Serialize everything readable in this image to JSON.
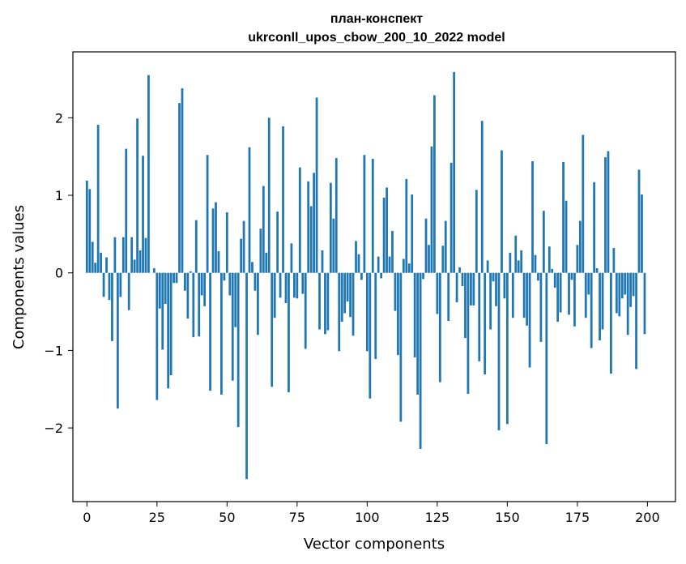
{
  "colors": {
    "bar": "#1f77b4",
    "axes": "#000000",
    "background": "#ffffff"
  },
  "chart_data": {
    "type": "bar",
    "title": "план-конспект",
    "subtitle": "ukrconll_upos_cbow_200_10_2022 model",
    "xlabel": "Vector components",
    "ylabel": "Components values",
    "xlim": [
      -5,
      210
    ],
    "ylim": [
      -2.95,
      2.85
    ],
    "xticks": [
      0,
      25,
      50,
      75,
      100,
      125,
      150,
      175,
      200
    ],
    "xtick_labels": [
      "0",
      "25",
      "50",
      "75",
      "100",
      "125",
      "150",
      "175",
      "200"
    ],
    "yticks": [
      -2,
      -1,
      0,
      1,
      2
    ],
    "ytick_labels": [
      "−2",
      "−1",
      "0",
      "1",
      "2"
    ],
    "grid": false,
    "legend": "none",
    "x": [
      0,
      1,
      2,
      3,
      4,
      5,
      6,
      7,
      8,
      9,
      10,
      11,
      12,
      13,
      14,
      15,
      16,
      17,
      18,
      19,
      20,
      21,
      22,
      23,
      24,
      25,
      26,
      27,
      28,
      29,
      30,
      31,
      32,
      33,
      34,
      35,
      36,
      37,
      38,
      39,
      40,
      41,
      42,
      43,
      44,
      45,
      46,
      47,
      48,
      49,
      50,
      51,
      52,
      53,
      54,
      55,
      56,
      57,
      58,
      59,
      60,
      61,
      62,
      63,
      64,
      65,
      66,
      67,
      68,
      69,
      70,
      71,
      72,
      73,
      74,
      75,
      76,
      77,
      78,
      79,
      80,
      81,
      82,
      83,
      84,
      85,
      86,
      87,
      88,
      89,
      90,
      91,
      92,
      93,
      94,
      95,
      96,
      97,
      98,
      99,
      100,
      101,
      102,
      103,
      104,
      105,
      106,
      107,
      108,
      109,
      110,
      111,
      112,
      113,
      114,
      115,
      116,
      117,
      118,
      119,
      120,
      121,
      122,
      123,
      124,
      125,
      126,
      127,
      128,
      129,
      130,
      131,
      132,
      133,
      134,
      135,
      136,
      137,
      138,
      139,
      140,
      141,
      142,
      143,
      144,
      145,
      146,
      147,
      148,
      149,
      150,
      151,
      152,
      153,
      154,
      155,
      156,
      157,
      158,
      159,
      160,
      161,
      162,
      163,
      164,
      165,
      166,
      167,
      168,
      169,
      170,
      171,
      172,
      173,
      174,
      175,
      176,
      177,
      178,
      179,
      180,
      181,
      182,
      183,
      184,
      185,
      186,
      187,
      188,
      189,
      190,
      191,
      192,
      193,
      194,
      195,
      196,
      197,
      198,
      199
    ],
    "values": [
      1.19,
      1.08,
      0.4,
      0.13,
      1.91,
      0.26,
      -0.31,
      0.2,
      -0.35,
      -0.88,
      0.46,
      -1.75,
      -0.31,
      0.46,
      1.6,
      -0.48,
      0.46,
      0.17,
      1.99,
      0.29,
      1.51,
      0.45,
      2.55,
      0.0,
      0.06,
      -1.64,
      -0.46,
      -0.99,
      -0.4,
      -1.49,
      -1.32,
      -0.13,
      -0.13,
      2.19,
      2.38,
      -0.23,
      -0.59,
      0.02,
      -0.83,
      0.68,
      -0.82,
      -0.29,
      -0.43,
      1.52,
      -1.52,
      0.83,
      0.91,
      0.28,
      -1.57,
      -0.1,
      0.78,
      -0.29,
      -1.39,
      -0.7,
      -1.99,
      0.44,
      0.67,
      -2.66,
      1.62,
      0.14,
      -0.23,
      -0.8,
      0.57,
      1.12,
      0.26,
      2.0,
      -1.47,
      -0.58,
      0.79,
      -0.32,
      1.89,
      -0.39,
      -1.54,
      0.38,
      -0.32,
      -0.33,
      1.36,
      -0.27,
      -0.98,
      1.18,
      0.86,
      1.29,
      2.26,
      -0.73,
      0.29,
      -0.79,
      -0.74,
      1.16,
      0.7,
      1.48,
      -1.01,
      -0.63,
      -0.52,
      -0.37,
      -0.57,
      -0.81,
      0.41,
      0.24,
      -0.09,
      1.52,
      -1.01,
      -1.62,
      1.47,
      -1.11,
      0.21,
      -0.07,
      0.97,
      1.1,
      0.21,
      0.54,
      -0.49,
      -1.06,
      -1.92,
      0.18,
      1.21,
      0.12,
      1.01,
      -1.09,
      -1.57,
      -2.27,
      -0.08,
      0.7,
      0.36,
      1.63,
      2.29,
      -0.53,
      -1.41,
      0.35,
      0.67,
      -0.62,
      1.42,
      2.59,
      -0.38,
      0.07,
      -0.17,
      -0.84,
      -1.56,
      -0.42,
      -0.42,
      1.07,
      -1.14,
      1.96,
      -1.31,
      0.16,
      -0.73,
      -0.11,
      -0.43,
      -2.03,
      1.58,
      -0.33,
      -1.95,
      0.26,
      -0.58,
      0.48,
      0.16,
      0.29,
      -0.58,
      -0.68,
      -1.22,
      1.44,
      0.23,
      -0.1,
      -0.89,
      0.8,
      -2.21,
      0.34,
      0.05,
      -0.19,
      -0.63,
      -0.51,
      1.43,
      0.93,
      -0.54,
      -0.09,
      -0.69,
      0.36,
      0.67,
      1.78,
      -0.58,
      -0.28,
      -0.97,
      1.17,
      0.06,
      -0.87,
      -0.73,
      1.49,
      1.57,
      -1.3,
      0.32,
      -0.52,
      -0.56,
      -0.33,
      -0.28,
      -0.8,
      -0.44,
      -0.3,
      -1.24,
      1.33,
      1.01,
      -0.79
    ]
  }
}
